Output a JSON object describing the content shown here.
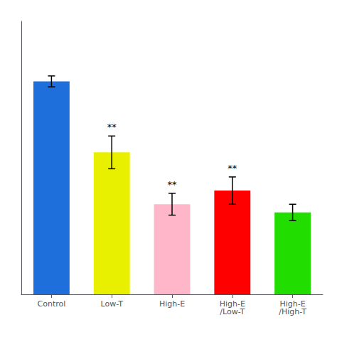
{
  "chart_data": {
    "type": "bar",
    "categories": [
      "Control",
      "Low-T",
      "High-E",
      "High-E\n/Low-T",
      "High-E\n/High-T"
    ],
    "values": [
      78,
      52,
      33,
      38,
      30
    ],
    "errors": [
      2,
      6,
      4,
      5,
      3
    ],
    "colors": [
      "#1e6fdb",
      "#e8f000",
      "#ffb6c8",
      "#ff0000",
      "#22dd00"
    ],
    "ylim": [
      0,
      100
    ],
    "tick_labels": "x",
    "grid": false,
    "annotations": [
      {
        "category": "Low-T",
        "text": "**"
      },
      {
        "category": "High-E",
        "text": "**"
      },
      {
        "category": "High-E\n/Low-T",
        "text": "**"
      }
    ]
  }
}
